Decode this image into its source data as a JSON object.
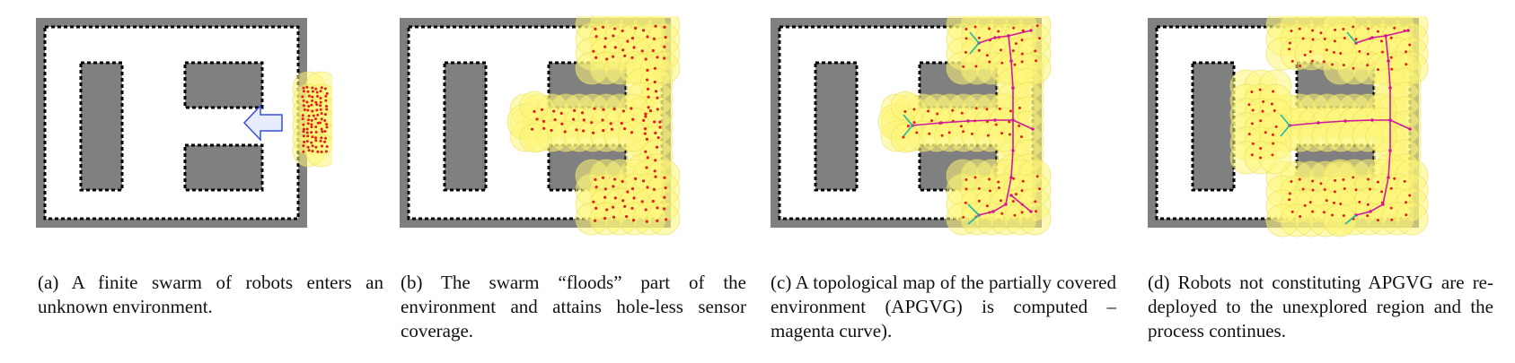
{
  "figure": {
    "captions": {
      "a": "(a) A finite swarm of robots enters an unknown environment.",
      "b": "(b) The swarm “floods” part of the environment and attains hole-less sensor coverage.",
      "c": "(c) A topological map of the partially covered environment (APGVG) is computed – magenta curve).",
      "d": "(d) Robots not constituting APGVG are re-deployed to the unexplored region and the process continues."
    }
  },
  "colors": {
    "wall": "#808080",
    "boundary": "#000000",
    "coverage": "#fdf57a",
    "robot": "#e0201a",
    "graph": "#d4189a",
    "leaf": "#1fb8a8",
    "arrow": "#3a4fd8"
  }
}
